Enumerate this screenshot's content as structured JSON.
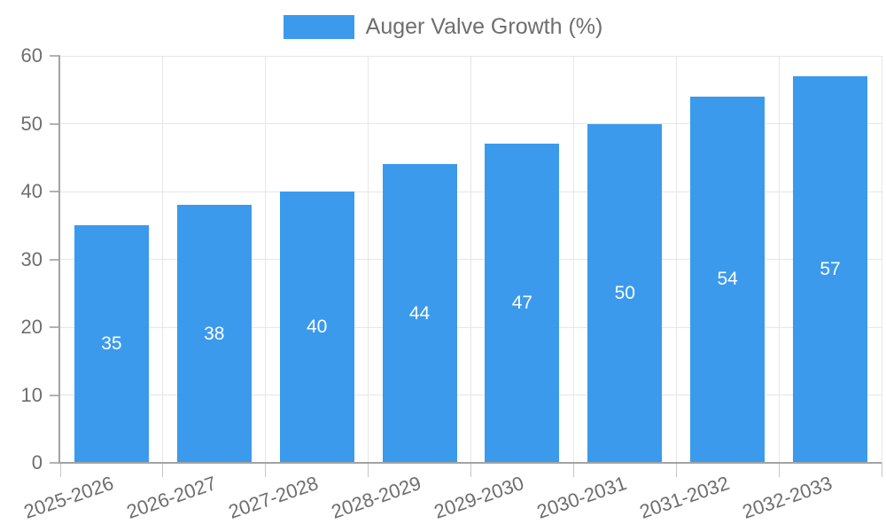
{
  "chart_data": {
    "type": "bar",
    "title": "",
    "legend": "Auger Valve Growth (%)",
    "legend_position": "top",
    "categories": [
      "2025-2026",
      "2026-2027",
      "2027-2028",
      "2028-2029",
      "2029-2030",
      "2030-2031",
      "2031-2032",
      "2032-2033"
    ],
    "values": [
      35,
      38,
      40,
      44,
      47,
      50,
      54,
      57
    ],
    "bar_value_labels": [
      "35",
      "38",
      "40",
      "44",
      "47",
      "50",
      "54",
      "57"
    ],
    "xlabel": "",
    "ylabel": "",
    "ylim": [
      0,
      60
    ],
    "yticks": [
      0,
      10,
      20,
      30,
      40,
      50,
      60
    ],
    "grid": true,
    "colors": {
      "bar": "#3b9aec",
      "bar_label": "#ffffff",
      "axis_text": "#6e6e6e",
      "grid": "#e6e6e6",
      "axis_line": "#a3a3a3",
      "tick": "#c6c6c6",
      "background": "#ffffff"
    }
  }
}
